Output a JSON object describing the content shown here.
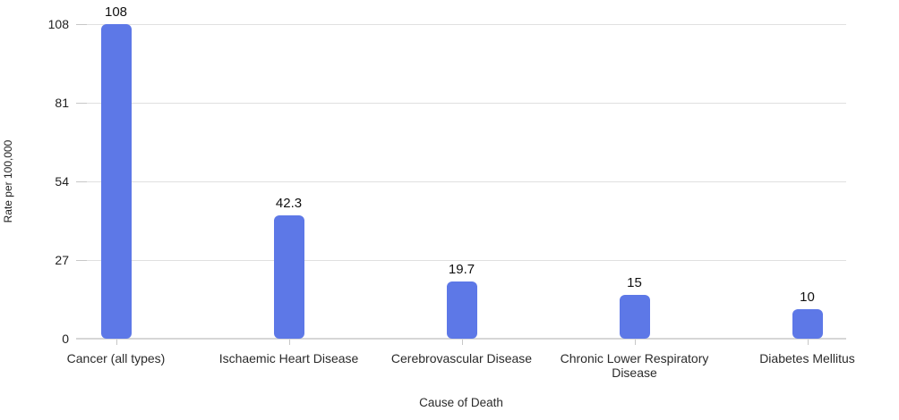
{
  "chart_data": {
    "type": "bar",
    "title": "",
    "categories": [
      "Cancer (all types)",
      "Ischaemic Heart Disease",
      "Cerebrovascular Disease",
      "Chronic Lower Respiratory Disease",
      "Diabetes Mellitus"
    ],
    "values": [
      108,
      42.3,
      19.7,
      15,
      10
    ],
    "value_labels": [
      "108",
      "42.3",
      "19.7",
      "15",
      "10"
    ],
    "xlabel": "Cause of Death",
    "ylabel": "Rate per 100,000",
    "yticks": [
      0,
      27,
      54,
      81,
      108
    ],
    "ytick_labels": [
      "0",
      "27",
      "54",
      "81",
      "108"
    ],
    "ylim": [
      0,
      108
    ],
    "grid": true,
    "legend": "none",
    "colors": {
      "bar": "#5d78e7",
      "grid_line": "#e0e0e0",
      "axis_line": "#d6d6d6",
      "tick_mark": "#c7c7c7",
      "label_text": "#111111"
    }
  }
}
